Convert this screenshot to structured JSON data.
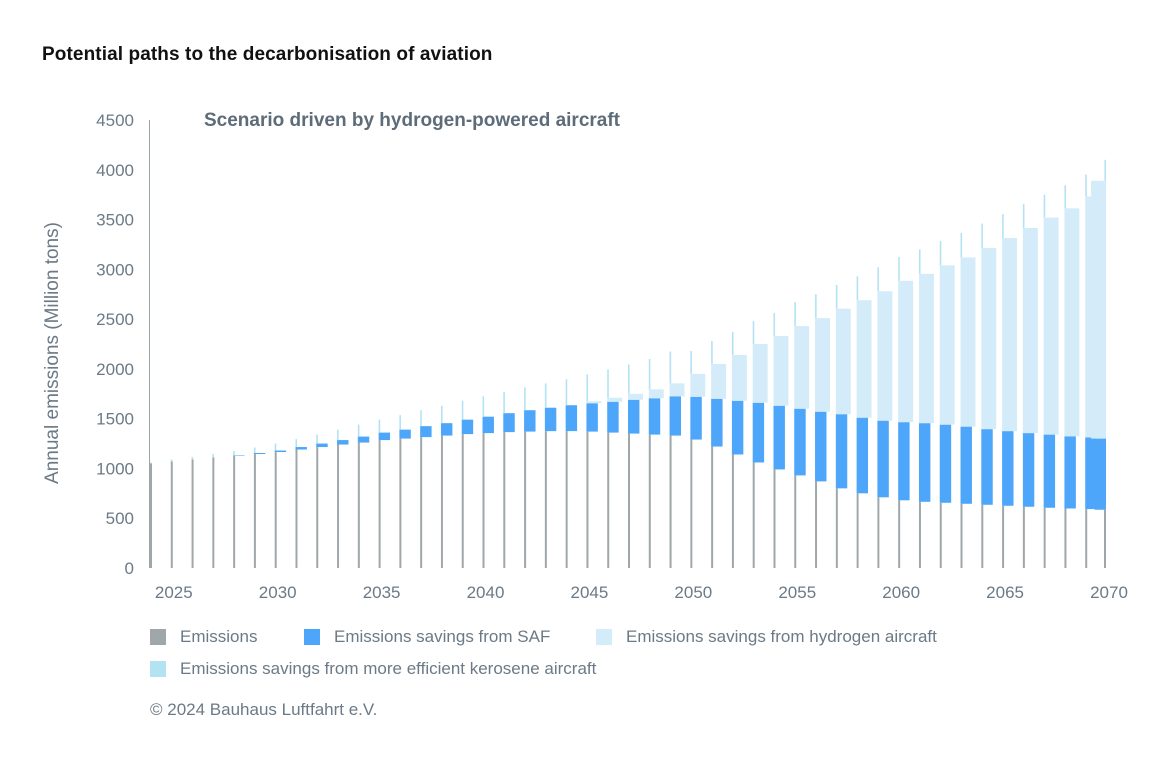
{
  "title": "Potential paths to the decarbonisation of aviation",
  "source": "© 2024 Bauhaus Luftfahrt e.V.",
  "colors": {
    "emissions": "#a0a7aa",
    "saf": "#4da6fa",
    "hydrogen": "#d4ecf9",
    "efficient": "#b3e3f3",
    "axis_text": "#6b7a86",
    "subtitle": "#5d6c78"
  },
  "legend": [
    {
      "label": "Emissions",
      "color": "#a0a7aa"
    },
    {
      "label": "Emissions savings from SAF",
      "color": "#4da6fa"
    },
    {
      "label": "Emissions savings from hydrogen aircraft",
      "color": "#d4ecf9"
    },
    {
      "label": "Emissions savings from more efficient kerosene aircraft",
      "color": "#b3e3f3"
    }
  ],
  "chart_data": {
    "type": "bar",
    "stacked": true,
    "title": "Potential paths to the decarbonisation of aviation",
    "subtitle": "Scenario driven by hydrogen-powered aircraft",
    "ylabel": "Annual emissions (Million tons)",
    "xlabel": "",
    "ylim": [
      0,
      4500
    ],
    "xlim": [
      2024,
      2070
    ],
    "yticks": [
      0,
      500,
      1000,
      1500,
      2000,
      2500,
      3000,
      3500,
      4000,
      4500
    ],
    "xticks": [
      2025,
      2030,
      2035,
      2040,
      2045,
      2050,
      2055,
      2060,
      2065,
      2070
    ],
    "grid": false,
    "legend_position": "bottom",
    "x": [
      2024,
      2025,
      2026,
      2027,
      2028,
      2029,
      2030,
      2031,
      2032,
      2033,
      2034,
      2035,
      2036,
      2037,
      2038,
      2039,
      2040,
      2041,
      2042,
      2043,
      2044,
      2045,
      2046,
      2047,
      2048,
      2049,
      2050,
      2051,
      2052,
      2053,
      2054,
      2055,
      2056,
      2057,
      2058,
      2059,
      2060,
      2061,
      2062,
      2063,
      2064,
      2065,
      2066,
      2067,
      2068,
      2069,
      2070
    ],
    "series": [
      {
        "name": "Emissions",
        "values": [
          1050,
          1070,
          1090,
          1110,
          1125,
          1145,
          1165,
          1190,
          1215,
          1240,
          1260,
          1285,
          1300,
          1315,
          1330,
          1345,
          1355,
          1365,
          1370,
          1375,
          1375,
          1370,
          1360,
          1350,
          1340,
          1330,
          1290,
          1220,
          1140,
          1060,
          990,
          930,
          870,
          800,
          750,
          710,
          680,
          665,
          655,
          645,
          635,
          625,
          615,
          605,
          598,
          592,
          585
        ]
      },
      {
        "name": "Emissions savings from SAF",
        "values": [
          0,
          0,
          0,
          0,
          5,
          10,
          15,
          25,
          35,
          45,
          60,
          75,
          90,
          110,
          125,
          145,
          165,
          190,
          215,
          235,
          260,
          285,
          310,
          340,
          365,
          395,
          430,
          480,
          540,
          600,
          640,
          670,
          700,
          745,
          760,
          770,
          785,
          790,
          785,
          775,
          760,
          750,
          740,
          735,
          725,
          720,
          715
        ]
      },
      {
        "name": "Emissions savings from hydrogen aircraft",
        "values": [
          0,
          0,
          0,
          0,
          0,
          0,
          0,
          0,
          0,
          0,
          0,
          0,
          0,
          0,
          0,
          0,
          0,
          0,
          0,
          0,
          0,
          20,
          40,
          60,
          90,
          130,
          230,
          350,
          460,
          590,
          700,
          830,
          940,
          1060,
          1180,
          1300,
          1420,
          1500,
          1600,
          1700,
          1820,
          1940,
          2060,
          2180,
          2290,
          2420,
          2590
        ]
      },
      {
        "name": "Emissions savings from more efficient kerosene aircraft",
        "values": [
          10,
          20,
          25,
          35,
          45,
          55,
          70,
          80,
          90,
          105,
          120,
          130,
          145,
          160,
          175,
          190,
          205,
          215,
          230,
          245,
          260,
          270,
          285,
          295,
          305,
          320,
          230,
          230,
          230,
          230,
          230,
          240,
          240,
          240,
          240,
          240,
          240,
          245,
          245,
          245,
          245,
          240,
          240,
          230,
          230,
          220,
          210
        ]
      }
    ]
  }
}
